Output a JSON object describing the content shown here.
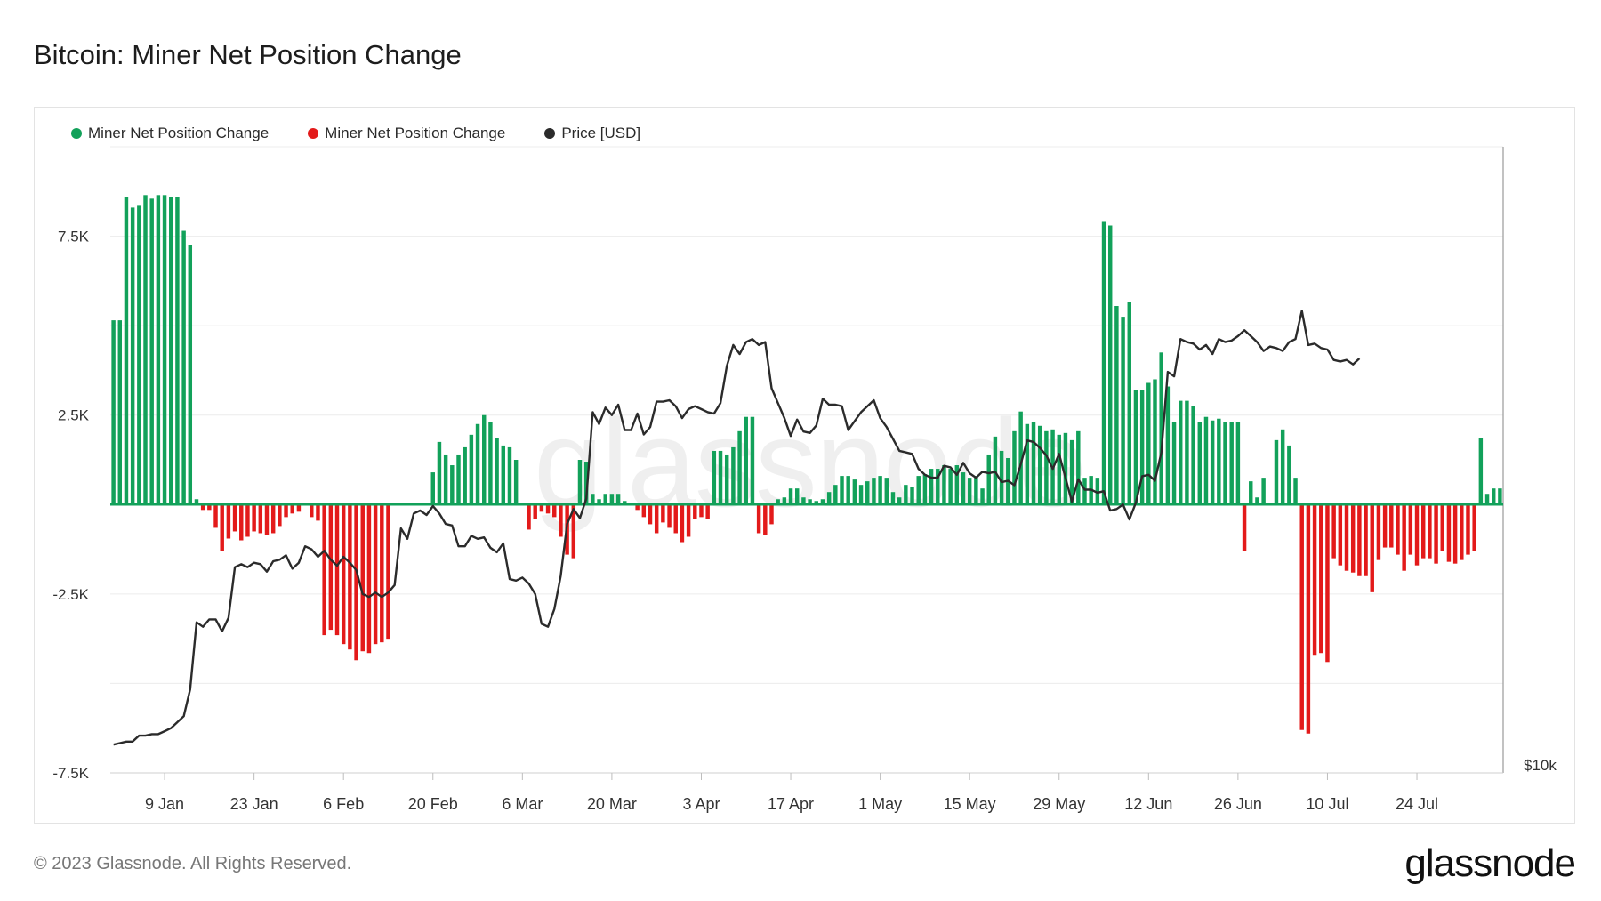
{
  "title": "Bitcoin: Miner Net Position Change",
  "copyright": "© 2023 Glassnode. All Rights Reserved.",
  "brand": "glassnode",
  "watermark": "glassnode",
  "colors": {
    "positive": "#12a15a",
    "negative": "#e31a1a",
    "price": "#2b2b2b"
  },
  "legend": [
    {
      "label": "Miner Net Position Change",
      "color": "#12a15a"
    },
    {
      "label": "Miner Net Position Change",
      "color": "#e31a1a"
    },
    {
      "label": "Price [USD]",
      "color": "#2b2b2b"
    }
  ],
  "chart_data": {
    "type": "bar",
    "x_tick_labels": [
      "9 Jan",
      "23 Jan",
      "6 Feb",
      "20 Feb",
      "6 Mar",
      "20 Mar",
      "3 Apr",
      "17 Apr",
      "1 May",
      "15 May",
      "29 May",
      "12 Jun",
      "26 Jun",
      "10 Jul",
      "24 Jul"
    ],
    "x_tick_day_index": [
      8,
      22,
      36,
      50,
      64,
      78,
      92,
      106,
      120,
      134,
      148,
      162,
      176,
      190,
      204
    ],
    "y_ticks": [
      7500,
      2500,
      -2500,
      -7500
    ],
    "y_tick_labels": [
      "7.5K",
      "2.5K",
      "-2.5K",
      "-7.5K"
    ],
    "ylim": [
      -7500,
      10000
    ],
    "price_axis_label": "$10k",
    "legend_placement": "top-left",
    "grid": true,
    "series": [
      {
        "name": "Miner Net Position Change",
        "values": [
          5150,
          5150,
          8600,
          8300,
          8350,
          8650,
          8550,
          8650,
          8650,
          8600,
          8600,
          7650,
          7250,
          150,
          -150,
          -150,
          -650,
          -1300,
          -950,
          -750,
          -1000,
          -900,
          -750,
          -800,
          -850,
          -800,
          -600,
          -350,
          -250,
          -200,
          0,
          -350,
          -450,
          -3650,
          -3500,
          -3650,
          -3900,
          -4050,
          -4350,
          -4100,
          -4150,
          -3900,
          -3850,
          -3750,
          0,
          0,
          0,
          0,
          0,
          0,
          900,
          1750,
          1400,
          1100,
          1400,
          1600,
          1950,
          2250,
          2500,
          2300,
          1850,
          1650,
          1600,
          1250,
          0,
          -700,
          -400,
          -200,
          -250,
          -350,
          -900,
          -1400,
          -1500,
          1250,
          1200,
          300,
          150,
          300,
          300,
          300,
          100,
          0,
          -150,
          -350,
          -550,
          -800,
          -500,
          -650,
          -800,
          -1050,
          -900,
          -400,
          -350,
          -400,
          1500,
          1500,
          1400,
          1600,
          2050,
          2450,
          2450,
          -800,
          -850,
          -550,
          150,
          200,
          450,
          450,
          200,
          150,
          100,
          150,
          350,
          550,
          800,
          800,
          700,
          550,
          650,
          750,
          800,
          750,
          350,
          200,
          550,
          500,
          800,
          850,
          1000,
          1000,
          1100,
          1000,
          1100,
          900,
          750,
          800,
          450,
          1400,
          1900,
          1500,
          1300,
          2050,
          2600,
          2250,
          2300,
          2200,
          2050,
          2100,
          1950,
          2000,
          1800,
          2050,
          750,
          800,
          750,
          7900,
          7800,
          5550,
          5250,
          5650,
          3200,
          3200,
          3400,
          3500,
          4250,
          3300,
          2300,
          2900,
          2900,
          2750,
          2300,
          2450,
          2350,
          2400,
          2300,
          2300,
          2300,
          -1300,
          650,
          200,
          750,
          0,
          1800,
          2100,
          1650,
          750,
          -6300,
          -6400,
          -4200,
          -4150,
          -4400,
          -1500,
          -1700,
          -1850,
          -1900,
          -2000,
          -2000,
          -2450,
          -1550,
          -1200,
          -1200,
          -1400,
          -1850,
          -1400,
          -1700,
          -1500,
          -1500,
          -1650,
          -1300,
          -1600,
          -1650,
          -1550,
          -1400,
          -1300,
          1850,
          300,
          450,
          450
        ],
        "color": "#12a15a"
      },
      {
        "name": "Price [USD]",
        "values": [
          16950,
          17000,
          17050,
          17050,
          17250,
          17250,
          17300,
          17300,
          17400,
          17500,
          17700,
          17900,
          18800,
          21050,
          20900,
          21150,
          21150,
          20750,
          21200,
          22900,
          23000,
          22900,
          23050,
          23000,
          22750,
          23100,
          23150,
          23300,
          22850,
          23050,
          23600,
          23500,
          23250,
          23450,
          23150,
          22950,
          23250,
          23050,
          22800,
          22000,
          21900,
          22050,
          21900,
          22050,
          22300,
          24200,
          23850,
          24700,
          24800,
          24650,
          24950,
          24700,
          24350,
          24300,
          23600,
          23600,
          23950,
          23850,
          23900,
          23550,
          23400,
          23700,
          22500,
          22450,
          22550,
          22350,
          22000,
          21000,
          20900,
          21500,
          22600,
          24350,
          24850,
          24550,
          25200,
          28100,
          27700,
          28250,
          28000,
          28350,
          27500,
          27500,
          28050,
          27350,
          27600,
          28450,
          28450,
          28500,
          28300,
          27900,
          28200,
          28300,
          28200,
          28100,
          28050,
          28400,
          29650,
          30350,
          30050,
          30450,
          30550,
          30350,
          30450,
          28900,
          28400,
          27900,
          27300,
          27850,
          27450,
          27400,
          27650,
          28550,
          28350,
          28350,
          28300,
          27500,
          27800,
          28100,
          28300,
          28500,
          27900,
          27600,
          27200,
          26800,
          26750,
          26700,
          26200,
          26000,
          25900,
          25900,
          26300,
          26250,
          26000,
          26400,
          26050,
          25900,
          26100,
          26050,
          26100,
          25750,
          25800,
          25650,
          26350,
          27150,
          27100,
          26900,
          26650,
          26200,
          26700,
          25900,
          25100,
          25850,
          25500,
          25500,
          25400,
          25450,
          24800,
          24850,
          25000,
          24500,
          25050,
          25950,
          26000,
          25800,
          26750,
          29450,
          29300,
          30550,
          30450,
          30400,
          30200,
          30350,
          30050,
          30550,
          30450,
          30500,
          30650,
          30850,
          30650,
          30450,
          30150,
          30300,
          30250,
          30150,
          30450,
          30550,
          31500,
          30350,
          30400,
          30250,
          30200,
          29850,
          29800,
          29850,
          29700,
          29900
        ]
      }
    ]
  }
}
